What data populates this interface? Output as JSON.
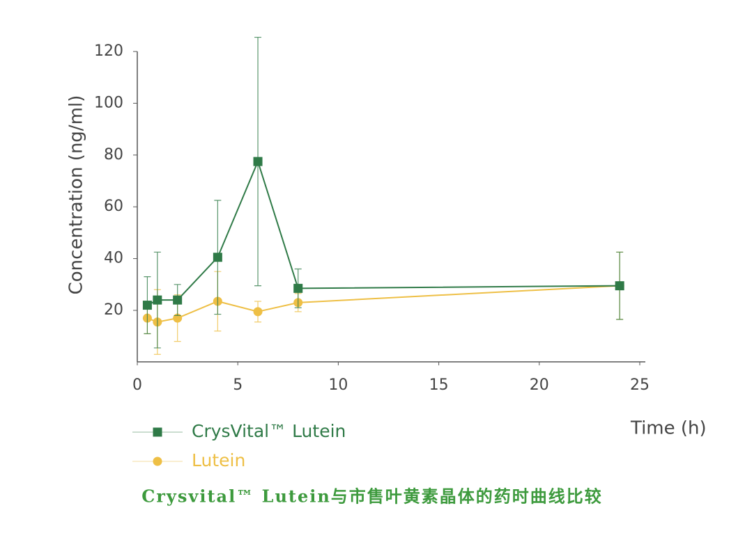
{
  "chart_data": {
    "type": "line",
    "xlabel": "Time (h)",
    "ylabel": "Concentration (ng/ml)",
    "caption": "Crysvital™ Lutein与市售叶黄素晶体的药时曲线比较",
    "x": [
      0.5,
      1,
      2,
      4,
      6,
      8,
      24
    ],
    "series": [
      {
        "name": "CrysVital™ Lutein",
        "color": "#2f7a47",
        "marker": "square",
        "values": [
          22,
          24,
          24,
          40.5,
          77.5,
          28.5,
          29.5
        ],
        "errors": [
          11,
          18.5,
          6,
          22,
          48,
          7.5,
          13
        ]
      },
      {
        "name": "Lutein",
        "color": "#eebf45",
        "marker": "circle",
        "values": [
          17,
          15.5,
          17,
          23.5,
          19.5,
          23,
          29.5
        ],
        "errors": [
          6,
          12.5,
          9,
          11.5,
          4,
          3.5,
          13
        ]
      }
    ],
    "xlim": [
      0,
      25
    ],
    "xticks": [
      0,
      5,
      10,
      15,
      20,
      25
    ],
    "ylim": [
      0,
      120
    ],
    "yticks": [
      20,
      40,
      60,
      80,
      100,
      120
    ]
  }
}
